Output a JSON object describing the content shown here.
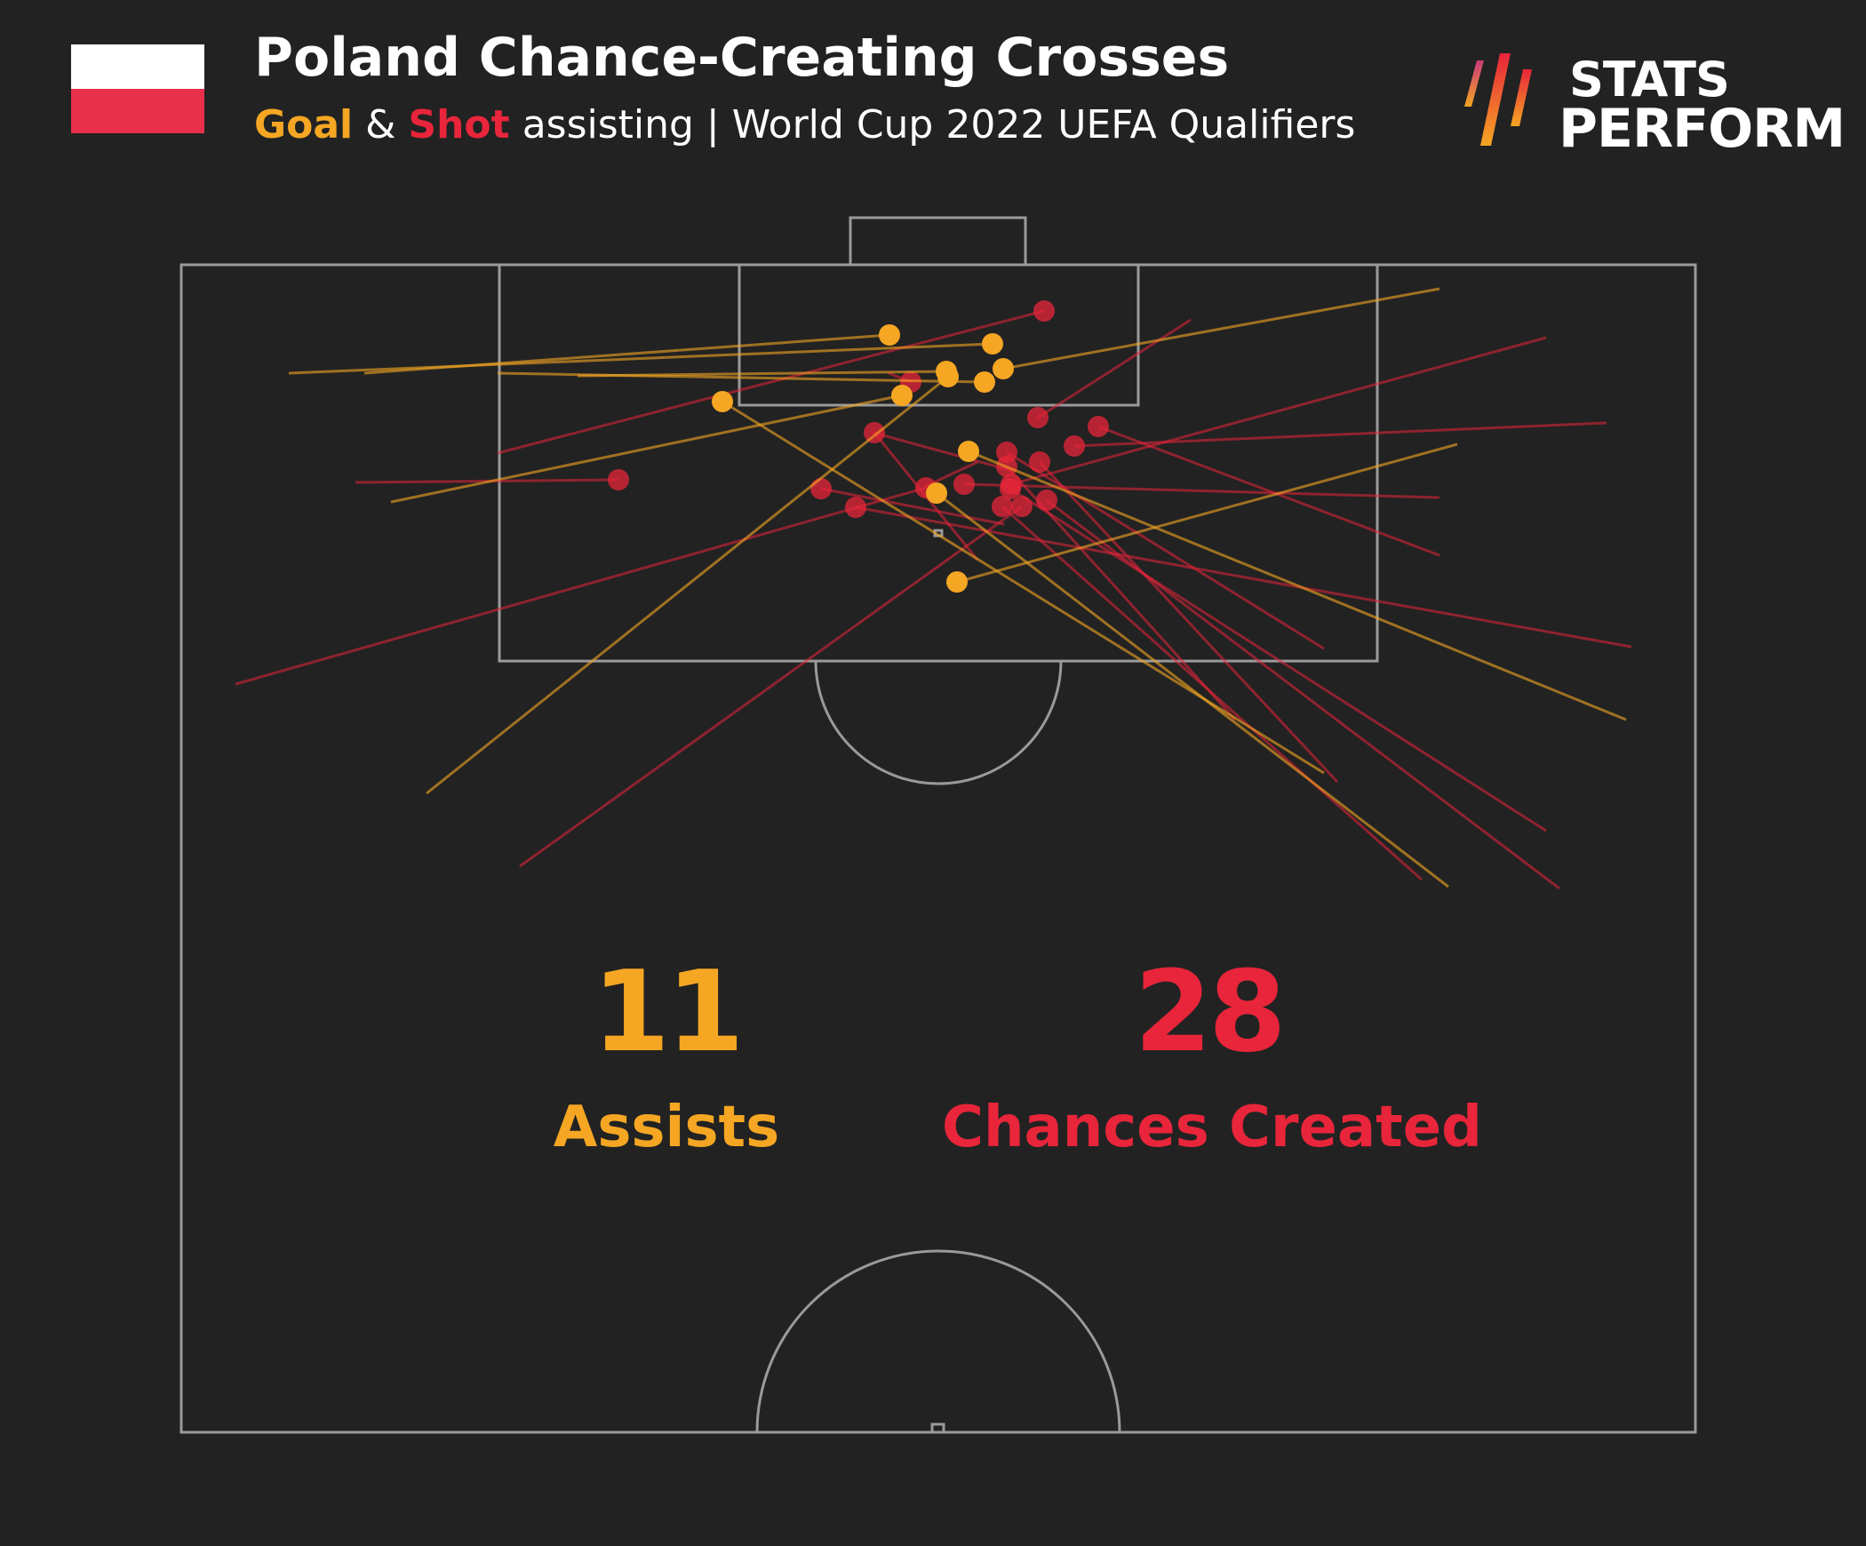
{
  "header": {
    "title": "Poland Chance-Creating Crosses",
    "subtitle_goal": "Goal",
    "subtitle_amp": " & ",
    "subtitle_shot": "Shot",
    "subtitle_rest": " assisting | World Cup 2022 UEFA Qualifiers"
  },
  "logo": {
    "line1": "STATS",
    "line2": "PERFORM"
  },
  "stats": {
    "assists_value": "11",
    "assists_label": "Assists",
    "chances_value": "28",
    "chances_label": "Chances Created"
  },
  "colors": {
    "background": "#222222",
    "assist": "#f5a623",
    "chance": "#e8253a",
    "pitch_lines": "#9a9a9a"
  }
}
